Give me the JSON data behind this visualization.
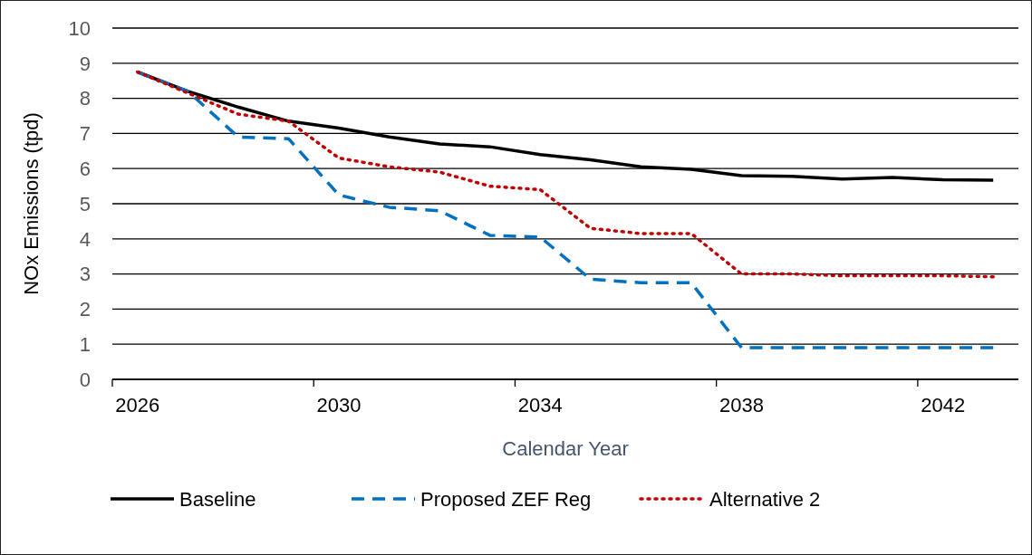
{
  "chart_data": {
    "type": "line",
    "xlabel": "Calendar Year",
    "ylabel": "NOx Emissions (tpd)",
    "categories": [
      "2026",
      null,
      null,
      null,
      "2030",
      null,
      null,
      null,
      "2034",
      null,
      null,
      null,
      "2038",
      null,
      null,
      null,
      "2042",
      null
    ],
    "series": [
      {
        "name": "Baseline",
        "color": "#000000",
        "line_style": "solid",
        "values": [
          8.75,
          8.2,
          7.75,
          7.35,
          7.15,
          6.9,
          6.7,
          6.62,
          6.4,
          6.25,
          6.05,
          5.98,
          5.8,
          5.78,
          5.7,
          5.75,
          5.68,
          5.67
        ]
      },
      {
        "name": "Proposed ZEF Reg",
        "color": "#0070c0",
        "line_style": "dashed",
        "values": [
          8.75,
          8.2,
          6.9,
          6.85,
          5.25,
          4.9,
          4.8,
          4.1,
          4.05,
          2.85,
          2.75,
          2.75,
          0.9,
          0.9,
          0.9,
          0.9,
          0.9,
          0.9
        ]
      },
      {
        "name": "Alternative 2",
        "color": "#c00000",
        "line_style": "dotted",
        "values": [
          8.75,
          8.15,
          7.55,
          7.35,
          6.3,
          6.05,
          5.9,
          5.5,
          5.4,
          4.3,
          4.15,
          4.15,
          3.0,
          3.0,
          2.95,
          2.95,
          2.95,
          2.92
        ]
      }
    ],
    "ylim": [
      0,
      10
    ],
    "yticks": [
      0,
      1,
      2,
      3,
      4,
      5,
      6,
      7,
      8,
      9,
      10
    ],
    "grid": "y",
    "legend": "bottom",
    "marker": "none"
  }
}
